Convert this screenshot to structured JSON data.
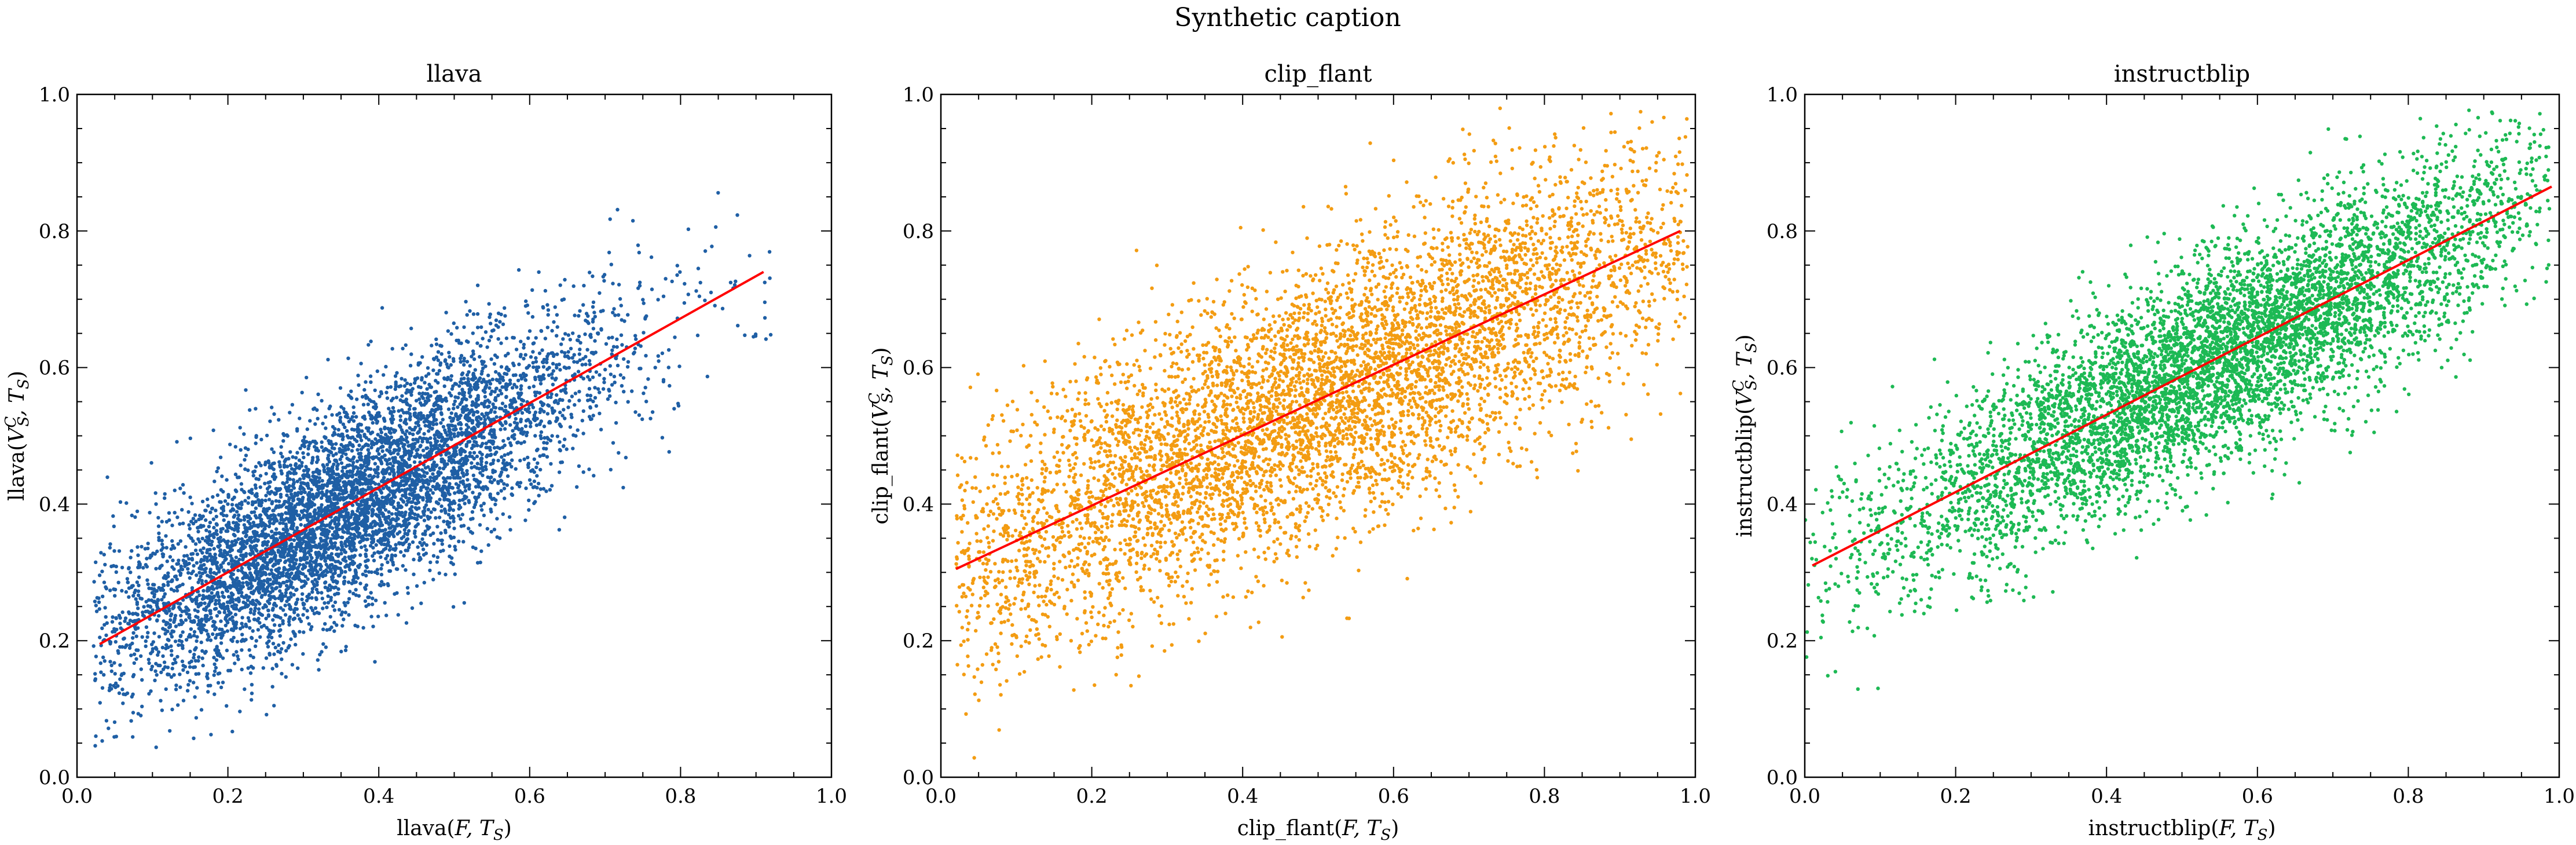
{
  "figure": {
    "title": "Synthetic caption"
  },
  "chart_data": [
    {
      "type": "scatter",
      "title": "llava",
      "xlabel": "llava(F, T_S)",
      "ylabel": "llava(V_S^C, T_S)",
      "xlim": [
        0,
        1
      ],
      "ylim": [
        0,
        1
      ],
      "xticks": [
        "0.0",
        "0.2",
        "0.4",
        "0.6",
        "0.8",
        "1.0"
      ],
      "yticks": [
        "0.0",
        "0.2",
        "0.4",
        "0.6",
        "0.8",
        "1.0"
      ],
      "grid": false,
      "point_color": "#1f5fa5",
      "fit_color": "#ff0000",
      "x_range": [
        0.02,
        0.92
      ],
      "center_x": 0.35,
      "spread_x": 0.17,
      "noise_sd": 0.075,
      "n_points": 6000,
      "series": [
        {
          "kind": "points",
          "x_min": 0.02,
          "x_max": 0.92
        },
        {
          "kind": "fit_line",
          "x": [
            0.03,
            0.91
          ],
          "y": [
            0.195,
            0.74
          ]
        }
      ]
    },
    {
      "type": "scatter",
      "title": "clip_flant",
      "xlabel": "clip_flant(F, T_S)",
      "ylabel": "clip_flant(V_S^C, T_S)",
      "xlim": [
        0,
        1
      ],
      "ylim": [
        0,
        1
      ],
      "xticks": [
        "0.0",
        "0.2",
        "0.4",
        "0.6",
        "0.8",
        "1.0"
      ],
      "yticks": [
        "0.0",
        "0.2",
        "0.4",
        "0.6",
        "0.8",
        "1.0"
      ],
      "grid": false,
      "point_color": "#f39c12",
      "fit_color": "#ff0000",
      "x_range": [
        0.02,
        0.99
      ],
      "center_x": 0.5,
      "spread_x": 0.27,
      "noise_sd": 0.1,
      "n_points": 6000,
      "series": [
        {
          "kind": "points",
          "x_min": 0.02,
          "x_max": 0.99
        },
        {
          "kind": "fit_line",
          "x": [
            0.02,
            0.98
          ],
          "y": [
            0.305,
            0.8
          ]
        }
      ]
    },
    {
      "type": "scatter",
      "title": "instructblip",
      "xlabel": "instructblip(F, T_S)",
      "ylabel": "instructblip(V_S^C, T_S)",
      "xlim": [
        0,
        1
      ],
      "ylim": [
        0,
        1
      ],
      "xticks": [
        "0.0",
        "0.2",
        "0.4",
        "0.6",
        "0.8",
        "1.0"
      ],
      "yticks": [
        "0.0",
        "0.2",
        "0.4",
        "0.6",
        "0.8",
        "1.0"
      ],
      "grid": false,
      "point_color": "#1db954",
      "fit_color": "#ff0000",
      "x_range": [
        0.0,
        0.99
      ],
      "center_x": 0.55,
      "spread_x": 0.22,
      "noise_sd": 0.075,
      "n_points": 6000,
      "series": [
        {
          "kind": "points",
          "x_min": 0.0,
          "x_max": 0.99
        },
        {
          "kind": "fit_line",
          "x": [
            0.01,
            0.99
          ],
          "y": [
            0.31,
            0.865
          ]
        }
      ]
    }
  ]
}
